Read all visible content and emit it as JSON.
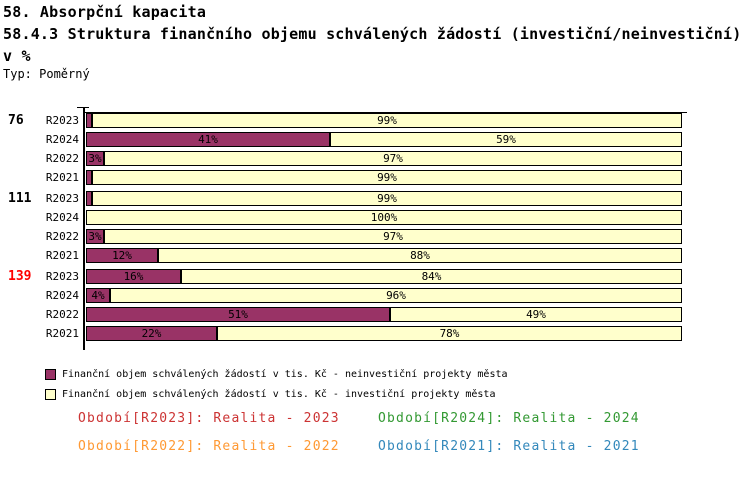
{
  "header": {
    "line1": "58. Absorpční kapacita",
    "line2": "58.4.3 Struktura finančního objemu schválených žádostí (investiční/neinvestiční)",
    "line3": "v %",
    "type_label": "Typ: Poměrný"
  },
  "colors": {
    "neinvesticni": "#993366",
    "investicni": "#FFFFCC",
    "axis": "#000000",
    "group_label_default": "#000000",
    "group_label_highlight": "#FF0000"
  },
  "chart_data": {
    "type": "bar",
    "orientation": "horizontal",
    "stacked": true,
    "value_unit": "%",
    "xlim": [
      0,
      100
    ],
    "grid": false,
    "show_label_min_pct": 3,
    "series_names": [
      "neinvestiční projekty města",
      "investiční projekty města"
    ],
    "groups": [
      {
        "label": "76",
        "label_color": "#000000",
        "rows": [
          {
            "period": "R2023",
            "values": [
              1,
              99
            ]
          },
          {
            "period": "R2024",
            "values": [
              41,
              59
            ]
          },
          {
            "period": "R2022",
            "values": [
              3,
              97
            ]
          },
          {
            "period": "R2021",
            "values": [
              1,
              99
            ]
          }
        ]
      },
      {
        "label": "111",
        "label_color": "#000000",
        "rows": [
          {
            "period": "R2023",
            "values": [
              1,
              99
            ]
          },
          {
            "period": "R2024",
            "values": [
              0,
              100
            ]
          },
          {
            "period": "R2022",
            "values": [
              3,
              97
            ]
          },
          {
            "period": "R2021",
            "values": [
              12,
              88
            ]
          }
        ]
      },
      {
        "label": "139",
        "label_color": "#FF0000",
        "rows": [
          {
            "period": "R2023",
            "values": [
              16,
              84
            ]
          },
          {
            "period": "R2024",
            "values": [
              4,
              96
            ]
          },
          {
            "period": "R2022",
            "values": [
              51,
              49
            ]
          },
          {
            "period": "R2021",
            "values": [
              22,
              78
            ]
          }
        ]
      }
    ]
  },
  "legend": {
    "items": [
      {
        "color": "#993366",
        "label": "Finanční objem schválených žádostí v tis. Kč - neinvestiční projekty města"
      },
      {
        "color": "#FFFFCC",
        "label": "Finanční objem schválených žádostí v tis. Kč - investiční projekty města"
      }
    ]
  },
  "periods_legend": [
    {
      "text": "Období[R2023]: Realita - 2023",
      "color": "#CC3333"
    },
    {
      "text": "Období[R2024]: Realita - 2024",
      "color": "#339933"
    },
    {
      "text": "Období[R2022]: Realita - 2022",
      "color": "#FF9933"
    },
    {
      "text": "Období[R2021]: Realita - 2021",
      "color": "#3388BB"
    }
  ]
}
